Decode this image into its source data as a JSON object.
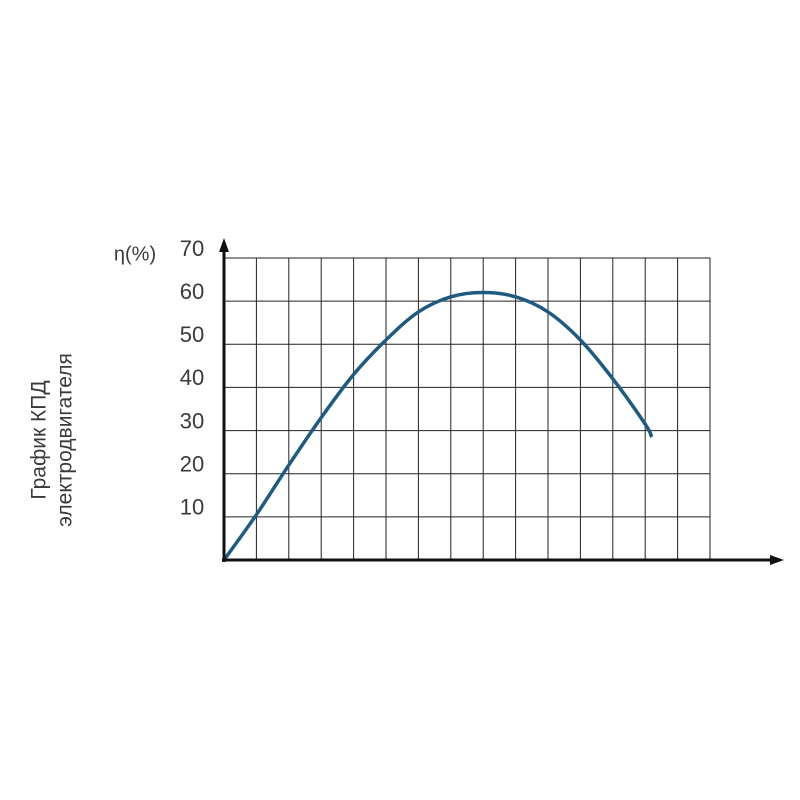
{
  "chart_data": {
    "type": "line",
    "title": [
      "График КПД",
      "электродвигателя"
    ],
    "y_label": "η(%)",
    "x": [
      0,
      1,
      2,
      3,
      4,
      5,
      6,
      7,
      8,
      9,
      10,
      11,
      12,
      13,
      13.2
    ],
    "series": [
      {
        "color": "#1f5a80",
        "values": [
          0,
          10.5,
          22,
          33,
          43,
          51,
          57.5,
          61,
          62,
          61,
          57.5,
          51,
          42,
          31.5,
          28.5
        ]
      }
    ],
    "xlim": [
      0,
      15
    ],
    "xticks": [
      0,
      1,
      2,
      3,
      4,
      5,
      6,
      7,
      8,
      9,
      10,
      11,
      12,
      13,
      14,
      15
    ],
    "ylim": [
      0,
      70
    ],
    "yticks": [
      10,
      20,
      30,
      40,
      50,
      60,
      70
    ],
    "grid": true
  }
}
